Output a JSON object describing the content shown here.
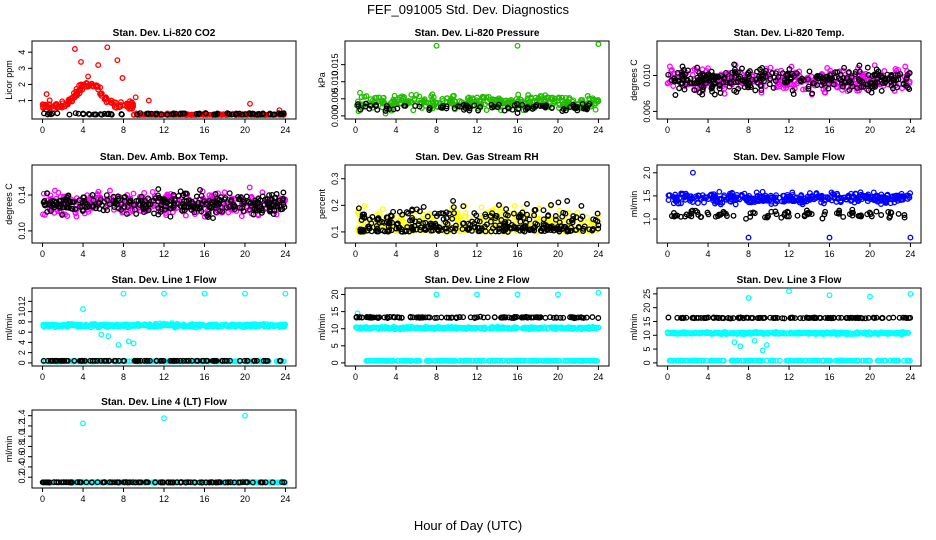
{
  "figure_title": "FEF_091005  Std. Dev. Diagnostics",
  "x_axis_title": "Hour of Day (UTC)",
  "colors": {
    "red": "#ff0000",
    "green": "#22bb00",
    "magenta": "#ff00ff",
    "yellow": "#ffff00",
    "blue": "#0000ff",
    "cyan": "#00ffff",
    "black": "#000000"
  },
  "chart_data": [
    {
      "type": "scatter",
      "title": "Stan. Dev. Li-820 CO2",
      "ylabel": "Licor ppm",
      "xlim": [
        0,
        24
      ],
      "xticks": [
        0,
        4,
        8,
        12,
        16,
        20,
        24
      ],
      "ylim": [
        0.05,
        4.5
      ],
      "yticks": [
        1,
        2,
        3,
        4
      ],
      "series": [
        {
          "color": "red",
          "profile": "co2",
          "x": [],
          "y": []
        },
        {
          "color": "black",
          "profile": "co2_low",
          "x": [],
          "y": []
        }
      ]
    },
    {
      "type": "scatter",
      "title": "Stan. Dev. Li-820 Pressure",
      "ylabel": "kPa",
      "xlim": [
        0,
        24
      ],
      "xticks": [
        0,
        4,
        8,
        12,
        16,
        20,
        24
      ],
      "ylim": [
        0,
        0.021
      ],
      "yticks": [
        0.0,
        0.005,
        0.01,
        0.015
      ],
      "series": [
        {
          "color": "green",
          "profile": "band",
          "x": [
            8.0,
            16.0,
            24.0
          ],
          "y": [
            0.0205,
            0.0205,
            0.021
          ]
        },
        {
          "color": "black",
          "profile": "band_low",
          "x": [],
          "y": []
        }
      ]
    },
    {
      "type": "scatter",
      "title": "Stan. Dev. Li-820 Temp.",
      "ylabel": "degrees C",
      "xlim": [
        0,
        24
      ],
      "xticks": [
        0,
        4,
        8,
        12,
        16,
        20,
        24
      ],
      "ylim": [
        0.0055,
        0.0135
      ],
      "yticks": [
        0.006,
        0.01
      ],
      "series": [
        {
          "color": "magenta",
          "profile": "wide",
          "x": [],
          "y": []
        },
        {
          "color": "black",
          "profile": "wide",
          "x": [],
          "y": []
        }
      ]
    },
    {
      "type": "scatter",
      "title": "Stan. Dev. Amb. Box Temp.",
      "ylabel": "degrees C",
      "xlim": [
        0,
        24
      ],
      "xticks": [
        0,
        4,
        8,
        12,
        16,
        20,
        24
      ],
      "ylim": [
        0.09,
        0.17
      ],
      "yticks": [
        0.1,
        0.14
      ],
      "series": [
        {
          "color": "magenta",
          "profile": "wide",
          "x": [],
          "y": []
        },
        {
          "color": "black",
          "profile": "wide",
          "x": [],
          "y": []
        }
      ]
    },
    {
      "type": "scatter",
      "title": "Stan. Dev. Gas Stream RH",
      "ylabel": "percent",
      "xlim": [
        0,
        24
      ],
      "xticks": [
        0,
        4,
        8,
        12,
        16,
        20,
        24
      ],
      "ylim": [
        0.07,
        0.34
      ],
      "yticks": [
        0.1,
        0.2,
        0.3
      ],
      "series": [
        {
          "color": "yellow",
          "profile": "rh",
          "x": [],
          "y": []
        },
        {
          "color": "black",
          "profile": "rh",
          "x": [],
          "y": []
        }
      ]
    },
    {
      "type": "scatter",
      "title": "Stan. Dev. Sample Flow",
      "ylabel": "ml/min",
      "xlim": [
        0,
        24
      ],
      "xticks": [
        0,
        4,
        8,
        12,
        16,
        20,
        24
      ],
      "ylim": [
        0.55,
        2.1
      ],
      "yticks": [
        1.0,
        1.5,
        2.0
      ],
      "series": [
        {
          "color": "blue",
          "profile": "flow",
          "x": [
            2.5,
            8.0,
            16.0,
            24.0
          ],
          "y": [
            2.0,
            0.6,
            0.6,
            0.6
          ]
        },
        {
          "color": "black",
          "profile": "flow_low",
          "x": [],
          "y": []
        }
      ]
    },
    {
      "type": "scatter",
      "title": "Stan. Dev. Line 1 Flow",
      "ylabel": "ml/min",
      "xlim": [
        0,
        24
      ],
      "xticks": [
        0,
        4,
        8,
        12,
        16,
        20,
        24
      ],
      "ylim": [
        0,
        14
      ],
      "yticks": [
        0,
        2,
        4,
        6,
        8,
        10,
        12
      ],
      "series": [
        {
          "color": "cyan",
          "profile": "line1",
          "x": [
            8.0,
            12.0,
            16.0,
            20.0,
            24.0,
            4.0
          ],
          "y": [
            13.5,
            13.5,
            13.5,
            13.5,
            13.5,
            10.5
          ]
        },
        {
          "color": "black",
          "profile": "flat",
          "x": [],
          "y": []
        }
      ]
    },
    {
      "type": "scatter",
      "title": "Stan. Dev. Line 2 Flow",
      "ylabel": "ml/min",
      "xlim": [
        0,
        24
      ],
      "xticks": [
        0,
        4,
        8,
        12,
        16,
        20,
        24
      ],
      "ylim": [
        0,
        21
      ],
      "yticks": [
        0,
        5,
        10,
        15,
        20
      ],
      "series": [
        {
          "color": "cyan",
          "profile": "line2",
          "x": [
            8.0,
            12.0,
            16.0,
            20.0,
            24.0,
            0.2
          ],
          "y": [
            20,
            20,
            20,
            20,
            20.5,
            14.5
          ]
        },
        {
          "color": "black",
          "profile": "line2_black",
          "x": [],
          "y": []
        }
      ]
    },
    {
      "type": "scatter",
      "title": "Stan. Dev. Line 3 Flow",
      "ylabel": "ml/min",
      "xlim": [
        0,
        24
      ],
      "xticks": [
        0,
        4,
        8,
        12,
        16,
        20,
        24
      ],
      "ylim": [
        0,
        26
      ],
      "yticks": [
        0,
        5,
        10,
        15,
        20,
        25
      ],
      "series": [
        {
          "color": "cyan",
          "profile": "line3",
          "x": [
            8.0,
            12.0,
            16.0,
            20.0,
            24.0
          ],
          "y": [
            23.5,
            26,
            24.5,
            24,
            25
          ]
        },
        {
          "color": "black",
          "profile": "line3_black",
          "x": [],
          "y": []
        }
      ]
    },
    {
      "type": "scatter",
      "title": "Stan. Dev. Line 4 (LT) Flow",
      "ylabel": "ml/min",
      "xlim": [
        0,
        24
      ],
      "xticks": [
        0,
        4,
        8,
        12,
        16,
        20,
        24
      ],
      "ylim": [
        0.05,
        1.45
      ],
      "yticks": [
        0.2,
        0.4,
        0.6,
        0.8,
        1.0,
        1.2,
        1.4
      ],
      "series": [
        {
          "color": "cyan",
          "profile": "line4",
          "x": [
            4.0,
            12.0,
            20.0
          ],
          "y": [
            1.25,
            1.35,
            1.4
          ]
        },
        {
          "color": "black",
          "profile": "line4_black",
          "x": [],
          "y": []
        }
      ]
    }
  ]
}
